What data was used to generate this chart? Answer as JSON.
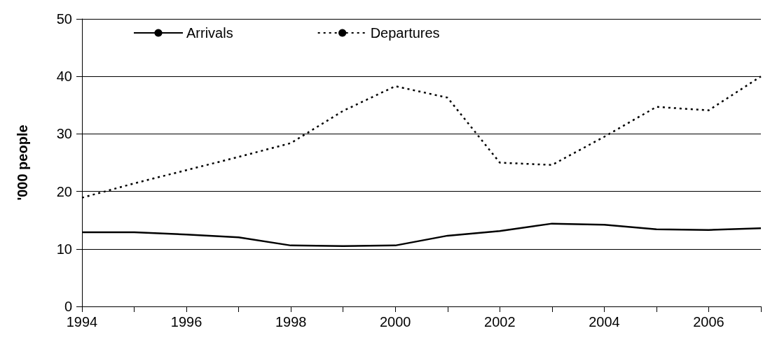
{
  "chart_data": {
    "type": "line",
    "ylabel": "'000 people",
    "x": [
      1994,
      1995,
      1996,
      1997,
      1998,
      1999,
      2000,
      2001,
      2002,
      2003,
      2004,
      2005,
      2006,
      2007
    ],
    "series": [
      {
        "name": "Arrivals",
        "color": "#000000",
        "line_style": "solid",
        "values": [
          12.9,
          12.9,
          12.5,
          12.0,
          10.6,
          10.5,
          10.6,
          12.3,
          13.1,
          14.4,
          14.2,
          13.4,
          13.3,
          13.6
        ]
      },
      {
        "name": "Departures",
        "color": "#000000",
        "line_style": "dotted",
        "values": [
          18.9,
          21.4,
          23.7,
          26.0,
          28.4,
          34.0,
          38.3,
          36.3,
          25.0,
          24.6,
          29.5,
          34.7,
          34.1,
          40.0
        ]
      }
    ],
    "xlim": [
      1994,
      2007
    ],
    "xticks": [
      1994,
      {
        "value": 1995,
        "label": null
      },
      1996,
      {
        "value": 1997,
        "label": null
      },
      1998,
      {
        "value": 1999,
        "label": null
      },
      2000,
      {
        "value": 2001,
        "label": null
      },
      2002,
      {
        "value": 2003,
        "label": null
      },
      2004,
      {
        "value": 2005,
        "label": null
      },
      2006,
      {
        "value": 2007,
        "label": null
      }
    ],
    "ylim": [
      0,
      50
    ],
    "yticks": [
      0,
      10,
      20,
      30,
      40,
      50
    ],
    "grid": "y",
    "legend": "top left",
    "marker": "none"
  }
}
